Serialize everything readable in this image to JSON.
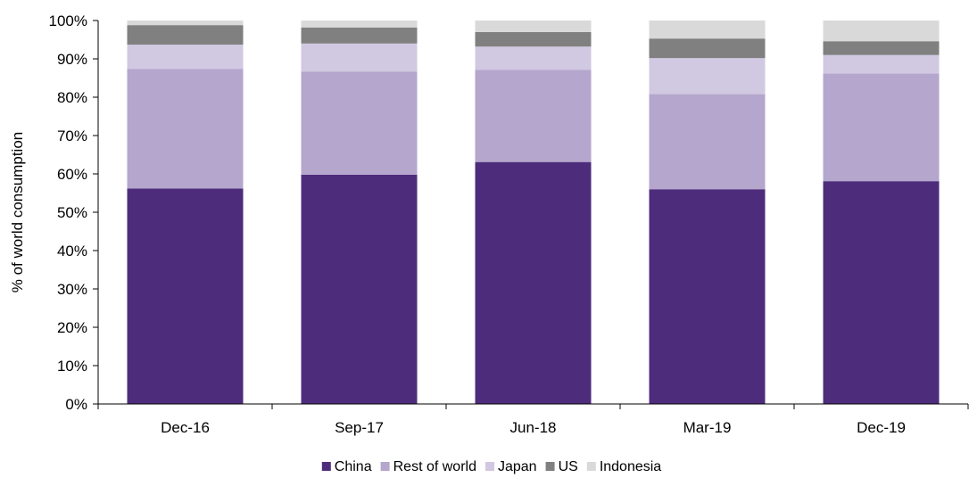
{
  "chart_data": {
    "type": "bar",
    "stacked": true,
    "categories": [
      "Dec-16",
      "Sep-17",
      "Jun-18",
      "Mar-19",
      "Dec-19"
    ],
    "series": [
      {
        "name": "China",
        "values": [
          56.2,
          59.8,
          63.1,
          56.0,
          58.1
        ],
        "color": "#4e2c7c"
      },
      {
        "name": "Rest of world",
        "values": [
          31.2,
          26.9,
          24.0,
          24.8,
          28.1
        ],
        "color": "#b4a6cc"
      },
      {
        "name": "Japan",
        "values": [
          6.3,
          7.3,
          6.1,
          9.4,
          4.8
        ],
        "color": "#d1c8e2"
      },
      {
        "name": "US",
        "values": [
          5.1,
          4.2,
          3.8,
          5.1,
          3.6
        ],
        "color": "#808080"
      },
      {
        "name": "Indonesia",
        "values": [
          1.2,
          1.8,
          3.0,
          4.7,
          5.4
        ],
        "color": "#d9d9d9"
      }
    ],
    "title": "",
    "xlabel": "",
    "ylabel": "% of world consumption",
    "ylim": [
      0,
      100
    ],
    "ytick_labels": [
      "0%",
      "10%",
      "20%",
      "30%",
      "40%",
      "50%",
      "60%",
      "70%",
      "80%",
      "90%",
      "100%"
    ],
    "grid": false,
    "legend": "bottom"
  }
}
